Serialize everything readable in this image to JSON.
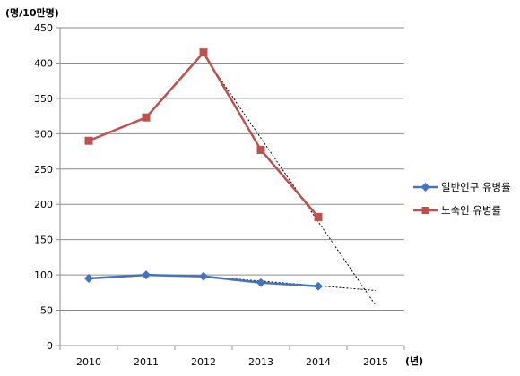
{
  "chart_data": {
    "type": "line",
    "y_unit_label": "(명/10만명)",
    "x_unit_label": "(년)",
    "categories": [
      "2010",
      "2011",
      "2012",
      "2013",
      "2014",
      "2015"
    ],
    "ylim": [
      0,
      450
    ],
    "yticks": [
      0,
      50,
      100,
      150,
      200,
      250,
      300,
      350,
      400,
      450
    ],
    "grid": "horizontal",
    "legend_position": "right",
    "series": [
      {
        "name": "일반인구 유병률",
        "color": "#4472C4",
        "marker": "diamond",
        "x": [
          "2010",
          "2011",
          "2012",
          "2013",
          "2014"
        ],
        "values": [
          95,
          100,
          98,
          89,
          84
        ]
      },
      {
        "name": "노숙인 유병률",
        "color": "#C0504D",
        "marker": "square",
        "x": [
          "2010",
          "2011",
          "2012",
          "2013",
          "2014"
        ],
        "values": [
          290,
          323,
          415,
          277,
          182
        ]
      }
    ],
    "trendlines": [
      {
        "style": "dotted",
        "color": "#000000",
        "x": [
          "2012",
          "2015"
        ],
        "values": [
          98,
          78
        ]
      },
      {
        "style": "dotted",
        "color": "#000000",
        "x": [
          "2012",
          "2015"
        ],
        "values": [
          412,
          57
        ]
      }
    ]
  }
}
